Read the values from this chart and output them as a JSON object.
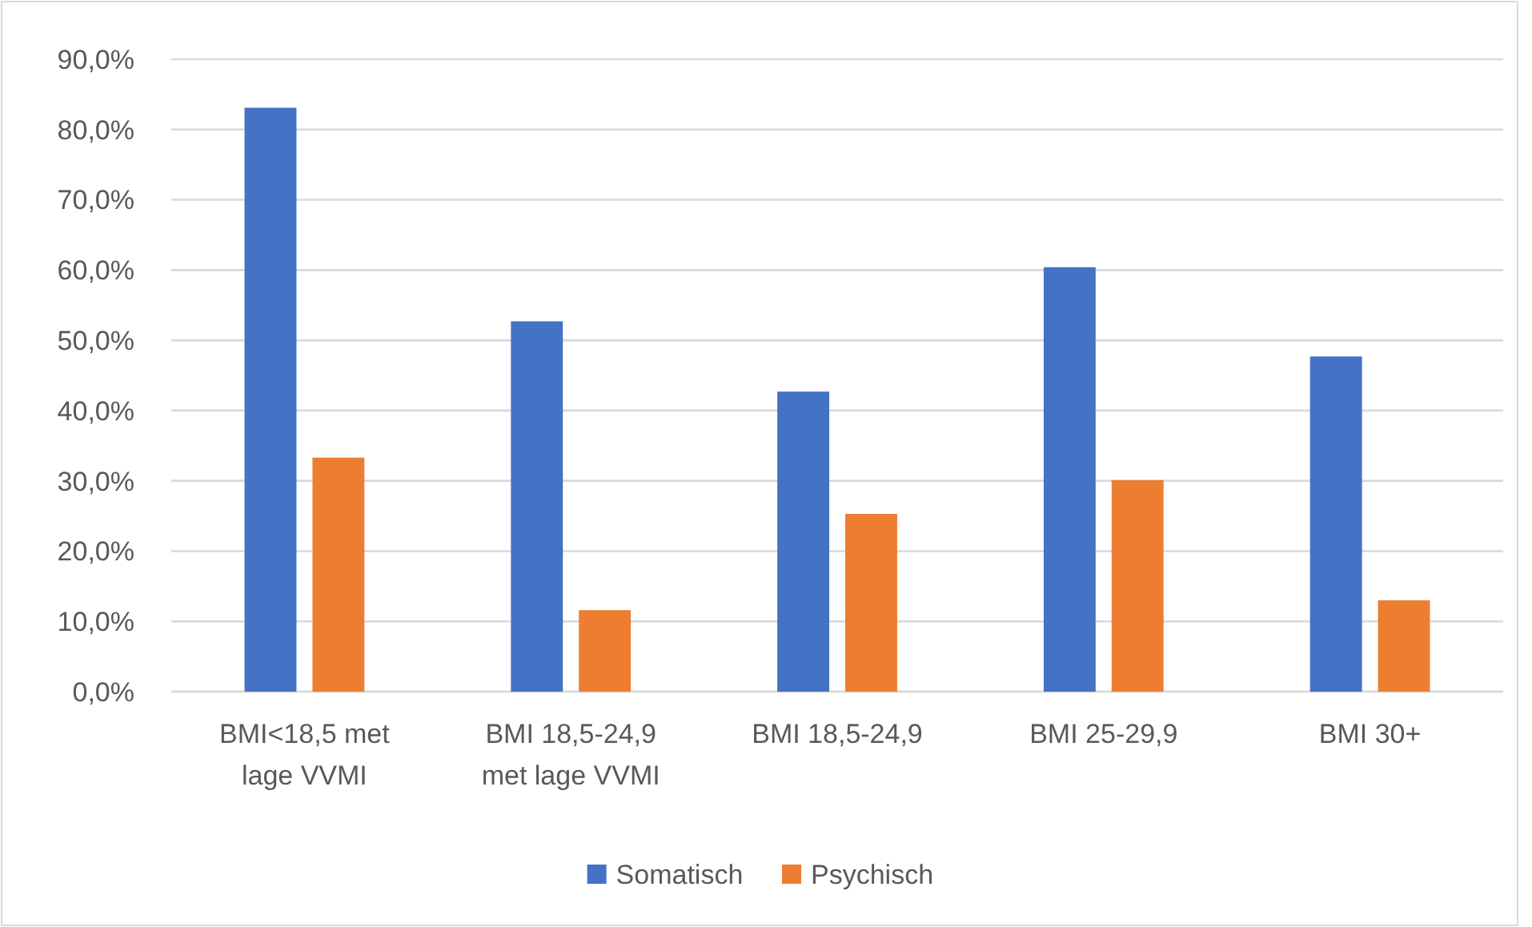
{
  "chart_data": {
    "type": "bar",
    "categories": [
      "BMI<18,5 met lage VVMI",
      "BMI 18,5-24,9 met lage VVMI",
      "BMI 18,5-24,9",
      "BMI 25-29,9",
      "BMI 30+"
    ],
    "series": [
      {
        "name": "Somatisch",
        "color": "#4472c4",
        "values": [
          83.1,
          52.7,
          42.7,
          60.4,
          47.7
        ]
      },
      {
        "name": "Psychisch",
        "color": "#ed7d31",
        "values": [
          33.3,
          11.6,
          25.3,
          30.1,
          13.0
        ]
      }
    ],
    "ylim": [
      0,
      90
    ],
    "yticks": [
      {
        "value": 0,
        "label": "0,0%"
      },
      {
        "value": 10,
        "label": "10,0%"
      },
      {
        "value": 20,
        "label": "20,0%"
      },
      {
        "value": 30,
        "label": "30,0%"
      },
      {
        "value": 40,
        "label": "40,0%"
      },
      {
        "value": 50,
        "label": "50,0%"
      },
      {
        "value": 60,
        "label": "60,0%"
      },
      {
        "value": 70,
        "label": "70,0%"
      },
      {
        "value": 80,
        "label": "80,0%"
      },
      {
        "value": 90,
        "label": "90,0%"
      }
    ],
    "grid": "y",
    "legend": "bottom"
  }
}
